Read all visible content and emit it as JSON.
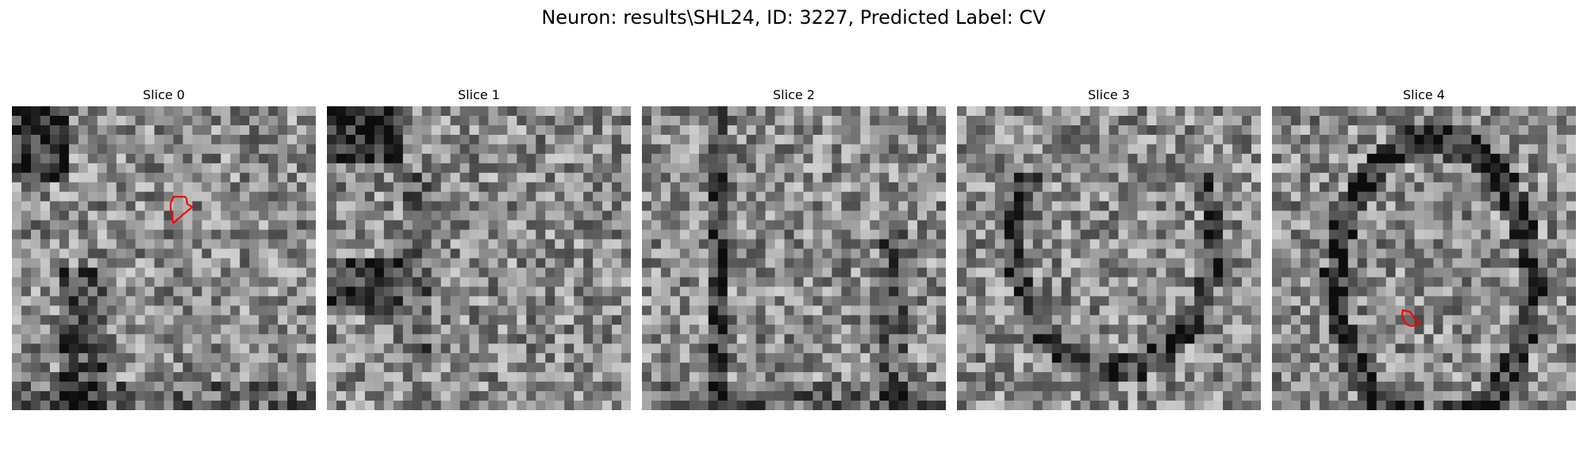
{
  "figure": {
    "title": "Neuron: results\\SHL24, ID: 3227, Predicted Label: CV"
  },
  "panels": [
    {
      "title": "Slice 0",
      "seed": 11,
      "roi": {
        "visible": true,
        "color": "#ff0000"
      }
    },
    {
      "title": "Slice 1",
      "seed": 23,
      "roi": {
        "visible": false
      }
    },
    {
      "title": "Slice 2",
      "seed": 37,
      "roi": {
        "visible": false
      }
    },
    {
      "title": "Slice 3",
      "seed": 41,
      "roi": {
        "visible": false
      }
    },
    {
      "title": "Slice 4",
      "seed": 53,
      "roi": {
        "visible": true,
        "color": "#ff0000"
      }
    }
  ],
  "colormap": "gray"
}
